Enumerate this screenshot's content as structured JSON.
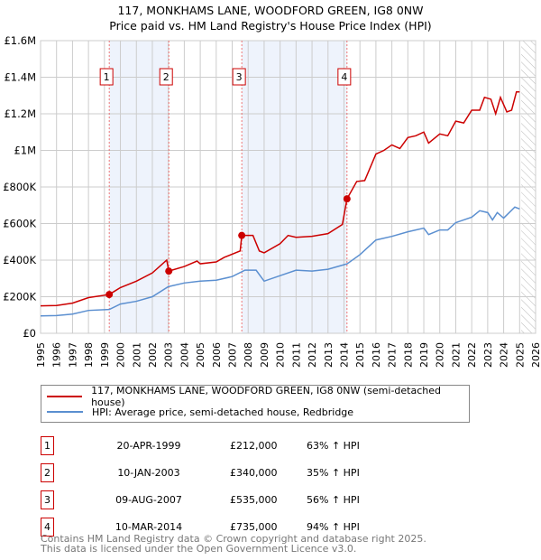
{
  "title_line1": "117, MONKHAMS LANE, WOODFORD GREEN, IG8 0NW",
  "title_line2": "Price paid vs. HM Land Registry's House Price Index (HPI)",
  "chart_data": {
    "type": "line",
    "xlim": [
      1995,
      2026
    ],
    "ylim": [
      0,
      1600000
    ],
    "y_ticks": [
      0,
      200000,
      400000,
      600000,
      800000,
      1000000,
      1200000,
      1400000,
      1600000
    ],
    "y_tick_labels": [
      "£0",
      "£200K",
      "£400K",
      "£600K",
      "£800K",
      "£1M",
      "£1.2M",
      "£1.4M",
      "£1.6M"
    ],
    "x_ticks": [
      "1995",
      "1996",
      "1997",
      "1998",
      "1999",
      "2000",
      "2001",
      "2002",
      "2003",
      "2004",
      "2005",
      "2006",
      "2007",
      "2008",
      "2009",
      "2010",
      "2011",
      "2012",
      "2013",
      "2014",
      "2015",
      "2016",
      "2017",
      "2018",
      "2019",
      "2020",
      "2021",
      "2022",
      "2023",
      "2024",
      "2025",
      "2026"
    ],
    "grid": true,
    "shaded_periods": [
      [
        1999.3,
        2003.03
      ],
      [
        2007.6,
        2014.19
      ]
    ],
    "forecast_hatch_from": 2025.1,
    "series": [
      {
        "name": "117, MONKHAMS LANE, WOODFORD GREEN, IG8 0NW (semi-detached house)",
        "color": "#cc0000",
        "points": [
          [
            1995,
            150000
          ],
          [
            1996,
            152000
          ],
          [
            1997,
            165000
          ],
          [
            1998,
            195000
          ],
          [
            1999.3,
            212000
          ],
          [
            2000,
            250000
          ],
          [
            2001,
            285000
          ],
          [
            2002,
            330000
          ],
          [
            2002.9,
            400000
          ],
          [
            2003.03,
            340000
          ],
          [
            2004,
            365000
          ],
          [
            2004.8,
            395000
          ],
          [
            2005,
            380000
          ],
          [
            2006,
            390000
          ],
          [
            2006.5,
            415000
          ],
          [
            2007.5,
            450000
          ],
          [
            2007.6,
            535000
          ],
          [
            2008.3,
            535000
          ],
          [
            2008.7,
            450000
          ],
          [
            2009,
            440000
          ],
          [
            2010,
            490000
          ],
          [
            2010.5,
            535000
          ],
          [
            2011,
            525000
          ],
          [
            2012,
            530000
          ],
          [
            2013,
            545000
          ],
          [
            2013.9,
            595000
          ],
          [
            2014.19,
            735000
          ],
          [
            2014.8,
            830000
          ],
          [
            2015.3,
            835000
          ],
          [
            2016,
            980000
          ],
          [
            2016.5,
            1000000
          ],
          [
            2017,
            1030000
          ],
          [
            2017.5,
            1010000
          ],
          [
            2018,
            1070000
          ],
          [
            2018.5,
            1080000
          ],
          [
            2019,
            1100000
          ],
          [
            2019.3,
            1040000
          ],
          [
            2020,
            1090000
          ],
          [
            2020.5,
            1080000
          ],
          [
            2021,
            1160000
          ],
          [
            2021.5,
            1150000
          ],
          [
            2022,
            1220000
          ],
          [
            2022.5,
            1220000
          ],
          [
            2022.8,
            1290000
          ],
          [
            2023.2,
            1280000
          ],
          [
            2023.5,
            1200000
          ],
          [
            2023.8,
            1290000
          ],
          [
            2024.2,
            1210000
          ],
          [
            2024.5,
            1220000
          ],
          [
            2024.8,
            1320000
          ],
          [
            2025,
            1320000
          ]
        ]
      },
      {
        "name": "HPI: Average price, semi-detached house, Redbridge",
        "color": "#5b8fd0",
        "points": [
          [
            1995,
            95000
          ],
          [
            1996,
            97000
          ],
          [
            1997,
            105000
          ],
          [
            1998,
            125000
          ],
          [
            1999.3,
            130000
          ],
          [
            2000,
            160000
          ],
          [
            2001,
            175000
          ],
          [
            2002,
            200000
          ],
          [
            2003,
            255000
          ],
          [
            2004,
            275000
          ],
          [
            2005,
            285000
          ],
          [
            2006,
            290000
          ],
          [
            2007,
            310000
          ],
          [
            2007.8,
            345000
          ],
          [
            2008.5,
            345000
          ],
          [
            2009,
            285000
          ],
          [
            2010,
            315000
          ],
          [
            2011,
            345000
          ],
          [
            2012,
            340000
          ],
          [
            2013,
            350000
          ],
          [
            2014.2,
            380000
          ],
          [
            2015,
            430000
          ],
          [
            2016,
            510000
          ],
          [
            2017,
            530000
          ],
          [
            2018,
            555000
          ],
          [
            2019,
            575000
          ],
          [
            2019.3,
            540000
          ],
          [
            2020,
            565000
          ],
          [
            2020.5,
            565000
          ],
          [
            2021,
            605000
          ],
          [
            2022,
            635000
          ],
          [
            2022.5,
            670000
          ],
          [
            2023,
            660000
          ],
          [
            2023.3,
            620000
          ],
          [
            2023.6,
            660000
          ],
          [
            2024,
            630000
          ],
          [
            2024.7,
            690000
          ],
          [
            2025,
            680000
          ]
        ]
      }
    ],
    "sales": [
      {
        "label": "1",
        "x": 1999.3,
        "value": 212000,
        "date": "20-APR-1999",
        "price": "£212,000",
        "hpi": "63% ↑ HPI"
      },
      {
        "label": "2",
        "x": 2003.03,
        "value": 340000,
        "date": "10-JAN-2003",
        "price": "£340,000",
        "hpi": "35% ↑ HPI"
      },
      {
        "label": "3",
        "x": 2007.6,
        "value": 535000,
        "date": "09-AUG-2007",
        "price": "£535,000",
        "hpi": "56% ↑ HPI"
      },
      {
        "label": "4",
        "x": 2014.19,
        "value": 735000,
        "date": "10-MAR-2014",
        "price": "£735,000",
        "hpi": "94% ↑ HPI"
      }
    ]
  },
  "legend": {
    "red": "117, MONKHAMS LANE, WOODFORD GREEN, IG8 0NW (semi-detached house)",
    "blue": "HPI: Average price, semi-detached house, Redbridge"
  },
  "footer": {
    "line1": "Contains HM Land Registry data © Crown copyright and database right 2025.",
    "line2": "This data is licensed under the Open Government Licence v3.0."
  }
}
